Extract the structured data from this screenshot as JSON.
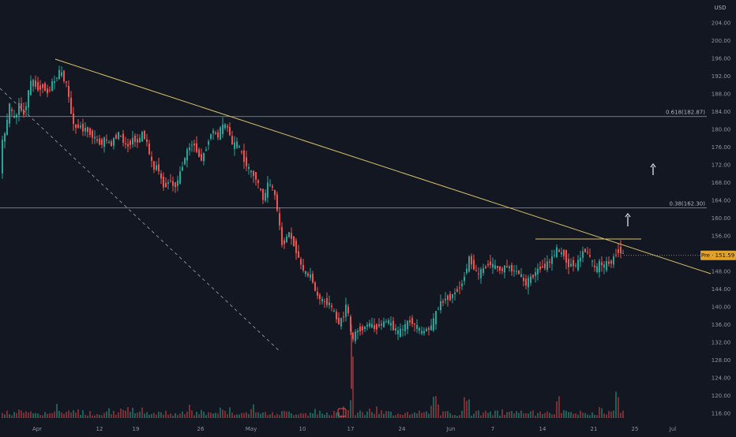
{
  "chart_data": {
    "type": "candlestick",
    "title": "",
    "currency": "USD",
    "x_ticks": [
      "Apr",
      "12",
      "19",
      "26",
      "May",
      "10",
      "17",
      "24",
      "Jun",
      "7",
      "14",
      "21",
      "25",
      "Jul"
    ],
    "y_ticks": [
      116,
      120,
      124,
      128,
      132,
      136,
      140,
      144,
      148,
      152,
      156,
      160,
      164,
      168,
      172,
      176,
      180,
      184,
      188,
      192,
      196,
      200,
      204
    ],
    "y_tick_labels": [
      "116.00",
      "120.00",
      "124.00",
      "128.00",
      "132.00",
      "136.00",
      "140.00",
      "144.00",
      "148.00",
      "152.00",
      "156.00",
      "160.00",
      "164.00",
      "168.00",
      "172.00",
      "176.00",
      "180.00",
      "184.00",
      "188.00",
      "192.00",
      "196.00",
      "200.00",
      "204.00"
    ],
    "ylim": [
      113.5,
      207
    ],
    "fib_levels": [
      {
        "label": "0.618(182.87)",
        "value": 182.87
      },
      {
        "label": "0.38(162.30)",
        "value": 162.3
      }
    ],
    "current_price": {
      "label": "Pre · 151.59",
      "value": 151.59
    },
    "price_path": [
      [
        0,
        170
      ],
      [
        4,
        178
      ],
      [
        8,
        180
      ],
      [
        13,
        186
      ],
      [
        16,
        183
      ],
      [
        20,
        182
      ],
      [
        24,
        186
      ],
      [
        30,
        183
      ],
      [
        35,
        187
      ],
      [
        40,
        191
      ],
      [
        45,
        190
      ],
      [
        50,
        189
      ],
      [
        55,
        190
      ],
      [
        60,
        188
      ],
      [
        65,
        190
      ],
      [
        70,
        191
      ],
      [
        75,
        193
      ],
      [
        80,
        192
      ],
      [
        85,
        190
      ],
      [
        90,
        184
      ],
      [
        95,
        180
      ],
      [
        100,
        181
      ],
      [
        105,
        180
      ],
      [
        110,
        180
      ],
      [
        115,
        179
      ],
      [
        120,
        178
      ],
      [
        125,
        177
      ],
      [
        130,
        177
      ],
      [
        135,
        178
      ],
      [
        140,
        176
      ],
      [
        145,
        178
      ],
      [
        150,
        179
      ],
      [
        155,
        178
      ],
      [
        160,
        176
      ],
      [
        165,
        177
      ],
      [
        170,
        178
      ],
      [
        175,
        177
      ],
      [
        180,
        179
      ],
      [
        185,
        178
      ],
      [
        190,
        174
      ],
      [
        195,
        171
      ],
      [
        200,
        172
      ],
      [
        205,
        168
      ],
      [
        210,
        167
      ],
      [
        215,
        169
      ],
      [
        220,
        167
      ],
      [
        225,
        168
      ],
      [
        230,
        171
      ],
      [
        235,
        174
      ],
      [
        240,
        176
      ],
      [
        245,
        177
      ],
      [
        250,
        175
      ],
      [
        255,
        173
      ],
      [
        260,
        175
      ],
      [
        265,
        178
      ],
      [
        270,
        180
      ],
      [
        275,
        178
      ],
      [
        280,
        180
      ],
      [
        285,
        181
      ],
      [
        290,
        180
      ],
      [
        295,
        176
      ],
      [
        300,
        177
      ],
      [
        305,
        175
      ],
      [
        310,
        173
      ],
      [
        315,
        171
      ],
      [
        320,
        170
      ],
      [
        325,
        169
      ],
      [
        330,
        166
      ],
      [
        335,
        164
      ],
      [
        340,
        168
      ],
      [
        345,
        167
      ],
      [
        350,
        164
      ],
      [
        353,
        160
      ],
      [
        357,
        154
      ],
      [
        362,
        155
      ],
      [
        366,
        157
      ],
      [
        370,
        155
      ],
      [
        375,
        153
      ],
      [
        380,
        150
      ],
      [
        385,
        148
      ],
      [
        390,
        147
      ],
      [
        395,
        147
      ],
      [
        400,
        143
      ],
      [
        405,
        142
      ],
      [
        410,
        141
      ],
      [
        415,
        141
      ],
      [
        420,
        140
      ],
      [
        425,
        138
      ],
      [
        430,
        136
      ],
      [
        435,
        138
      ],
      [
        440,
        141
      ],
      [
        443,
        136
      ],
      [
        446,
        132
      ],
      [
        450,
        134
      ],
      [
        455,
        135
      ],
      [
        460,
        135
      ],
      [
        465,
        136
      ],
      [
        470,
        136
      ],
      [
        475,
        135
      ],
      [
        480,
        136
      ],
      [
        485,
        136
      ],
      [
        490,
        137
      ],
      [
        495,
        136
      ],
      [
        500,
        135
      ],
      [
        505,
        134
      ],
      [
        510,
        135
      ],
      [
        515,
        136
      ],
      [
        520,
        137
      ],
      [
        525,
        136
      ],
      [
        530,
        135
      ],
      [
        535,
        134
      ],
      [
        540,
        135
      ],
      [
        545,
        135
      ],
      [
        550,
        137
      ],
      [
        555,
        140
      ],
      [
        560,
        141
      ],
      [
        565,
        142
      ],
      [
        570,
        142
      ],
      [
        575,
        143
      ],
      [
        580,
        144
      ],
      [
        585,
        145
      ],
      [
        590,
        148
      ],
      [
        595,
        151
      ],
      [
        600,
        149
      ],
      [
        605,
        147
      ],
      [
        610,
        148
      ],
      [
        615,
        149
      ],
      [
        620,
        150
      ],
      [
        625,
        149
      ],
      [
        630,
        149
      ],
      [
        635,
        148
      ],
      [
        640,
        149
      ],
      [
        645,
        149
      ],
      [
        650,
        148
      ],
      [
        655,
        148
      ],
      [
        660,
        147
      ],
      [
        665,
        145
      ],
      [
        670,
        146
      ],
      [
        675,
        147
      ],
      [
        680,
        148
      ],
      [
        685,
        149
      ],
      [
        690,
        149
      ],
      [
        695,
        150
      ],
      [
        700,
        151
      ],
      [
        705,
        153
      ],
      [
        710,
        152
      ],
      [
        715,
        152
      ],
      [
        720,
        149
      ],
      [
        725,
        150
      ],
      [
        730,
        149
      ],
      [
        735,
        151
      ],
      [
        740,
        153
      ],
      [
        745,
        152
      ],
      [
        750,
        150
      ],
      [
        755,
        148
      ],
      [
        760,
        150
      ],
      [
        765,
        149
      ],
      [
        770,
        150
      ],
      [
        775,
        150
      ],
      [
        780,
        152
      ],
      [
        785,
        153
      ],
      [
        790,
        151.6
      ]
    ],
    "volume_spike_x": [
      445,
      550,
      590,
      705,
      780
    ],
    "annotations": [
      {
        "type": "arrow",
        "x": 827,
        "y_top": 208,
        "y_bottom": 222
      },
      {
        "type": "arrow",
        "x": 795,
        "y_top": 271,
        "y_bottom": 287
      }
    ],
    "colors": {
      "background": "#131722",
      "up": "#26a69a",
      "down": "#ef5350",
      "trendline": "#d8c26a",
      "fib_line": "#9598a1",
      "dashed_line": "#868993",
      "price_tag": "#e0a22a",
      "text": "#b2b5be",
      "grid_text": "#8f92a0"
    }
  }
}
